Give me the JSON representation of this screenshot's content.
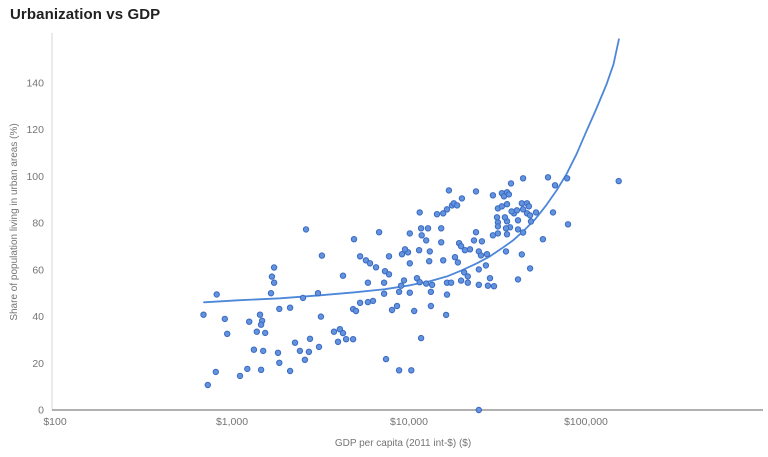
{
  "page": {
    "title": "Urbanization vs GDP"
  },
  "chart_data": {
    "type": "scatter",
    "title": "Urbanization vs GDP",
    "xlabel": "GDP per capita (2011 int-$) ($)",
    "ylabel": "Share of population living in urban areas (%)",
    "x_scale": "log",
    "grid": false,
    "legend": "none",
    "x_range": [
      100,
      1000000
    ],
    "y_range": [
      0,
      161
    ],
    "x_ticks": [
      {
        "value": 100,
        "label": "$100"
      },
      {
        "value": 1000,
        "label": "$1,000"
      },
      {
        "value": 10000,
        "label": "$10,000"
      },
      {
        "value": 100000,
        "label": "$100,000"
      }
    ],
    "y_ticks": [
      0,
      20,
      40,
      60,
      80,
      100,
      120,
      140
    ],
    "colors": {
      "point_fill": "#6493de",
      "point_stroke": "#3a6ac2",
      "trend_line": "#4d87d8",
      "axis_text": "#757575",
      "title_text": "#212121",
      "x_axis_line": "#b0b0b0",
      "y_axis_line": "#e0e0e0"
    },
    "points": [
      [
        820,
        49.5
      ],
      [
        1660,
        50
      ],
      [
        2520,
        48
      ],
      [
        3060,
        50
      ],
      [
        1730,
        54.5
      ],
      [
        1850,
        43.3
      ],
      [
        2130,
        43.8
      ],
      [
        690,
        40.8
      ],
      [
        910,
        39
      ],
      [
        1440,
        40.8
      ],
      [
        1480,
        38.2
      ],
      [
        1250,
        37.8
      ],
      [
        1460,
        36.5
      ],
      [
        3180,
        40
      ],
      [
        940,
        32.6
      ],
      [
        1380,
        33.5
      ],
      [
        1540,
        33
      ],
      [
        2270,
        28.8
      ],
      [
        2760,
        30.5
      ],
      [
        3770,
        33.5
      ],
      [
        3970,
        29.2
      ],
      [
        1330,
        25.8
      ],
      [
        1500,
        25.3
      ],
      [
        1820,
        24.5
      ],
      [
        2420,
        25.3
      ],
      [
        2720,
        24.9
      ],
      [
        3100,
        27
      ],
      [
        2580,
        21.5
      ],
      [
        1850,
        20.2
      ],
      [
        810,
        16.3
      ],
      [
        1110,
        14.6
      ],
      [
        1220,
        17.6
      ],
      [
        1460,
        17.2
      ],
      [
        2130,
        16.7
      ],
      [
        730,
        10.7
      ],
      [
        2620,
        77.3
      ],
      [
        3220,
        66.1
      ],
      [
        1730,
        61
      ],
      [
        1680,
        57.1
      ],
      [
        4240,
        57.5
      ],
      [
        11500,
        84.6
      ],
      [
        11700,
        77.8
      ],
      [
        12800,
        77.8
      ],
      [
        15200,
        77.8
      ],
      [
        6780,
        76.1
      ],
      [
        10100,
        75.6
      ],
      [
        4890,
        73.1
      ],
      [
        11800,
        74.8
      ],
      [
        12500,
        72.6
      ],
      [
        15200,
        71.8
      ],
      [
        23900,
        76.1
      ],
      [
        25800,
        72.2
      ],
      [
        23300,
        72.6
      ],
      [
        19200,
        71.4
      ],
      [
        19700,
        70.1
      ],
      [
        22100,
        68.8
      ],
      [
        20700,
        68.4
      ],
      [
        24800,
        67.9
      ],
      [
        11400,
        68.4
      ],
      [
        13100,
        67.9
      ],
      [
        9870,
        67.5
      ],
      [
        9490,
        68.8
      ],
      [
        9130,
        66.7
      ],
      [
        5290,
        65.8
      ],
      [
        5710,
        64.1
      ],
      [
        6020,
        62.8
      ],
      [
        7710,
        65.8
      ],
      [
        7320,
        59.4
      ],
      [
        7710,
        58.1
      ],
      [
        6510,
        61.1
      ],
      [
        10100,
        62.8
      ],
      [
        13000,
        63.7
      ],
      [
        15600,
        64.1
      ],
      [
        18200,
        65.4
      ],
      [
        18900,
        63.2
      ],
      [
        25500,
        66.2
      ],
      [
        27600,
        66.7
      ],
      [
        9370,
        55.5
      ],
      [
        11100,
        56.4
      ],
      [
        11500,
        54.7
      ],
      [
        20500,
        58.9
      ],
      [
        21500,
        57.2
      ],
      [
        24800,
        60.2
      ],
      [
        27200,
        61.9
      ],
      [
        16800,
        94
      ],
      [
        19900,
        90.6
      ],
      [
        23900,
        93.6
      ],
      [
        29800,
        91.9
      ],
      [
        33500,
        92.8
      ],
      [
        34400,
        91.5
      ],
      [
        37700,
        97
      ],
      [
        44100,
        99.2
      ],
      [
        35800,
        88.1
      ],
      [
        31800,
        86.3
      ],
      [
        39200,
        84.2
      ],
      [
        40700,
        85.5
      ],
      [
        44100,
        85.9
      ],
      [
        46400,
        84.2
      ],
      [
        48300,
        83.3
      ],
      [
        52200,
        84.6
      ],
      [
        17500,
        87.6
      ],
      [
        17900,
        88.5
      ],
      [
        18700,
        87.6
      ],
      [
        16400,
        85.9
      ],
      [
        15600,
        84.2
      ],
      [
        14400,
        83.8
      ],
      [
        31800,
        80.3
      ],
      [
        35800,
        80.8
      ],
      [
        37200,
        78.2
      ],
      [
        31800,
        75.6
      ],
      [
        35800,
        75.2
      ],
      [
        29800,
        74.8
      ],
      [
        61000,
        99.6
      ],
      [
        78200,
        99.2
      ],
      [
        153000,
        98
      ],
      [
        66800,
        96.2
      ],
      [
        35800,
        93.2
      ],
      [
        36700,
        92.3
      ],
      [
        33500,
        87.2
      ],
      [
        38000,
        85
      ],
      [
        43400,
        88.5
      ],
      [
        46400,
        88.5
      ],
      [
        47600,
        87.2
      ],
      [
        31400,
        82.5
      ],
      [
        34800,
        82.5
      ],
      [
        41300,
        81.2
      ],
      [
        31800,
        78.6
      ],
      [
        35300,
        77.8
      ],
      [
        41300,
        77.3
      ],
      [
        44100,
        76
      ],
      [
        48900,
        80.7
      ],
      [
        65100,
        84.6
      ],
      [
        79100,
        79.5
      ],
      [
        57100,
        73.1
      ],
      [
        35300,
        67.9
      ],
      [
        43400,
        66.6
      ],
      [
        48300,
        60.6
      ],
      [
        41300,
        55.9
      ],
      [
        30200,
        53
      ],
      [
        28700,
        56.4
      ],
      [
        5860,
        54.5
      ],
      [
        7230,
        54.5
      ],
      [
        9020,
        53.2
      ],
      [
        12500,
        54.1
      ],
      [
        13500,
        53.6
      ],
      [
        16400,
        54.5
      ],
      [
        17300,
        54.5
      ],
      [
        19700,
        55.4
      ],
      [
        21500,
        54.5
      ],
      [
        24800,
        53.6
      ],
      [
        27900,
        53.2
      ],
      [
        7230,
        49.8
      ],
      [
        8790,
        50.6
      ],
      [
        10100,
        50.2
      ],
      [
        13300,
        50.6
      ],
      [
        16400,
        49.4
      ],
      [
        5290,
        45.9
      ],
      [
        5860,
        46.2
      ],
      [
        6260,
        46.7
      ],
      [
        4830,
        43.2
      ],
      [
        5020,
        42.4
      ],
      [
        8020,
        42.8
      ],
      [
        8550,
        44.5
      ],
      [
        10700,
        42.4
      ],
      [
        13300,
        44.5
      ],
      [
        16200,
        40.7
      ],
      [
        4070,
        34.6
      ],
      [
        4240,
        32.9
      ],
      [
        4410,
        30.3
      ],
      [
        4830,
        30.3
      ],
      [
        11700,
        30.8
      ],
      [
        7410,
        21.8
      ],
      [
        8790,
        17
      ],
      [
        10300,
        17
      ],
      [
        24800,
        0
      ]
    ],
    "trend_line": [
      [
        695,
        46.1
      ],
      [
        1110,
        47
      ],
      [
        1870,
        47.8
      ],
      [
        3140,
        49.1
      ],
      [
        4940,
        50.4
      ],
      [
        7320,
        51.7
      ],
      [
        10100,
        53.4
      ],
      [
        13100,
        55.1
      ],
      [
        16400,
        57.2
      ],
      [
        19900,
        59.8
      ],
      [
        24200,
        62.8
      ],
      [
        28700,
        65.8
      ],
      [
        33500,
        69.2
      ],
      [
        38700,
        72.6
      ],
      [
        44700,
        76.9
      ],
      [
        51500,
        81.6
      ],
      [
        59500,
        87.6
      ],
      [
        68200,
        94
      ],
      [
        77500,
        100.9
      ],
      [
        88400,
        109.5
      ],
      [
        100000,
        118.9
      ],
      [
        114000,
        128.7
      ],
      [
        130500,
        139.4
      ],
      [
        143000,
        148
      ],
      [
        153500,
        158.7
      ]
    ]
  }
}
